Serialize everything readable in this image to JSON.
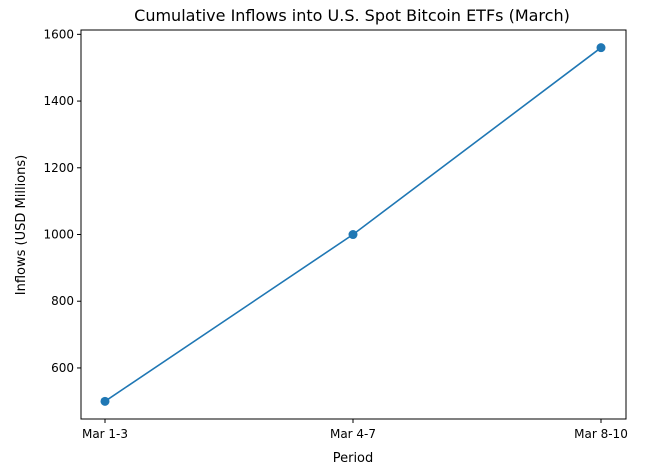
{
  "chart_data": {
    "type": "line",
    "title": "Cumulative Inflows into U.S. Spot Bitcoin ETFs (March)",
    "xlabel": "Period",
    "ylabel": "Inflows (USD Millions)",
    "categories": [
      "Mar 1-3",
      "Mar 4-7",
      "Mar 8-10"
    ],
    "series": [
      {
        "values": [
          500,
          1000,
          1560
        ],
        "color": "#1f77b4"
      }
    ],
    "yticks": [
      600,
      800,
      1000,
      1200,
      1400,
      1600
    ],
    "ylim": [
      447,
      1613
    ],
    "grid": false
  }
}
